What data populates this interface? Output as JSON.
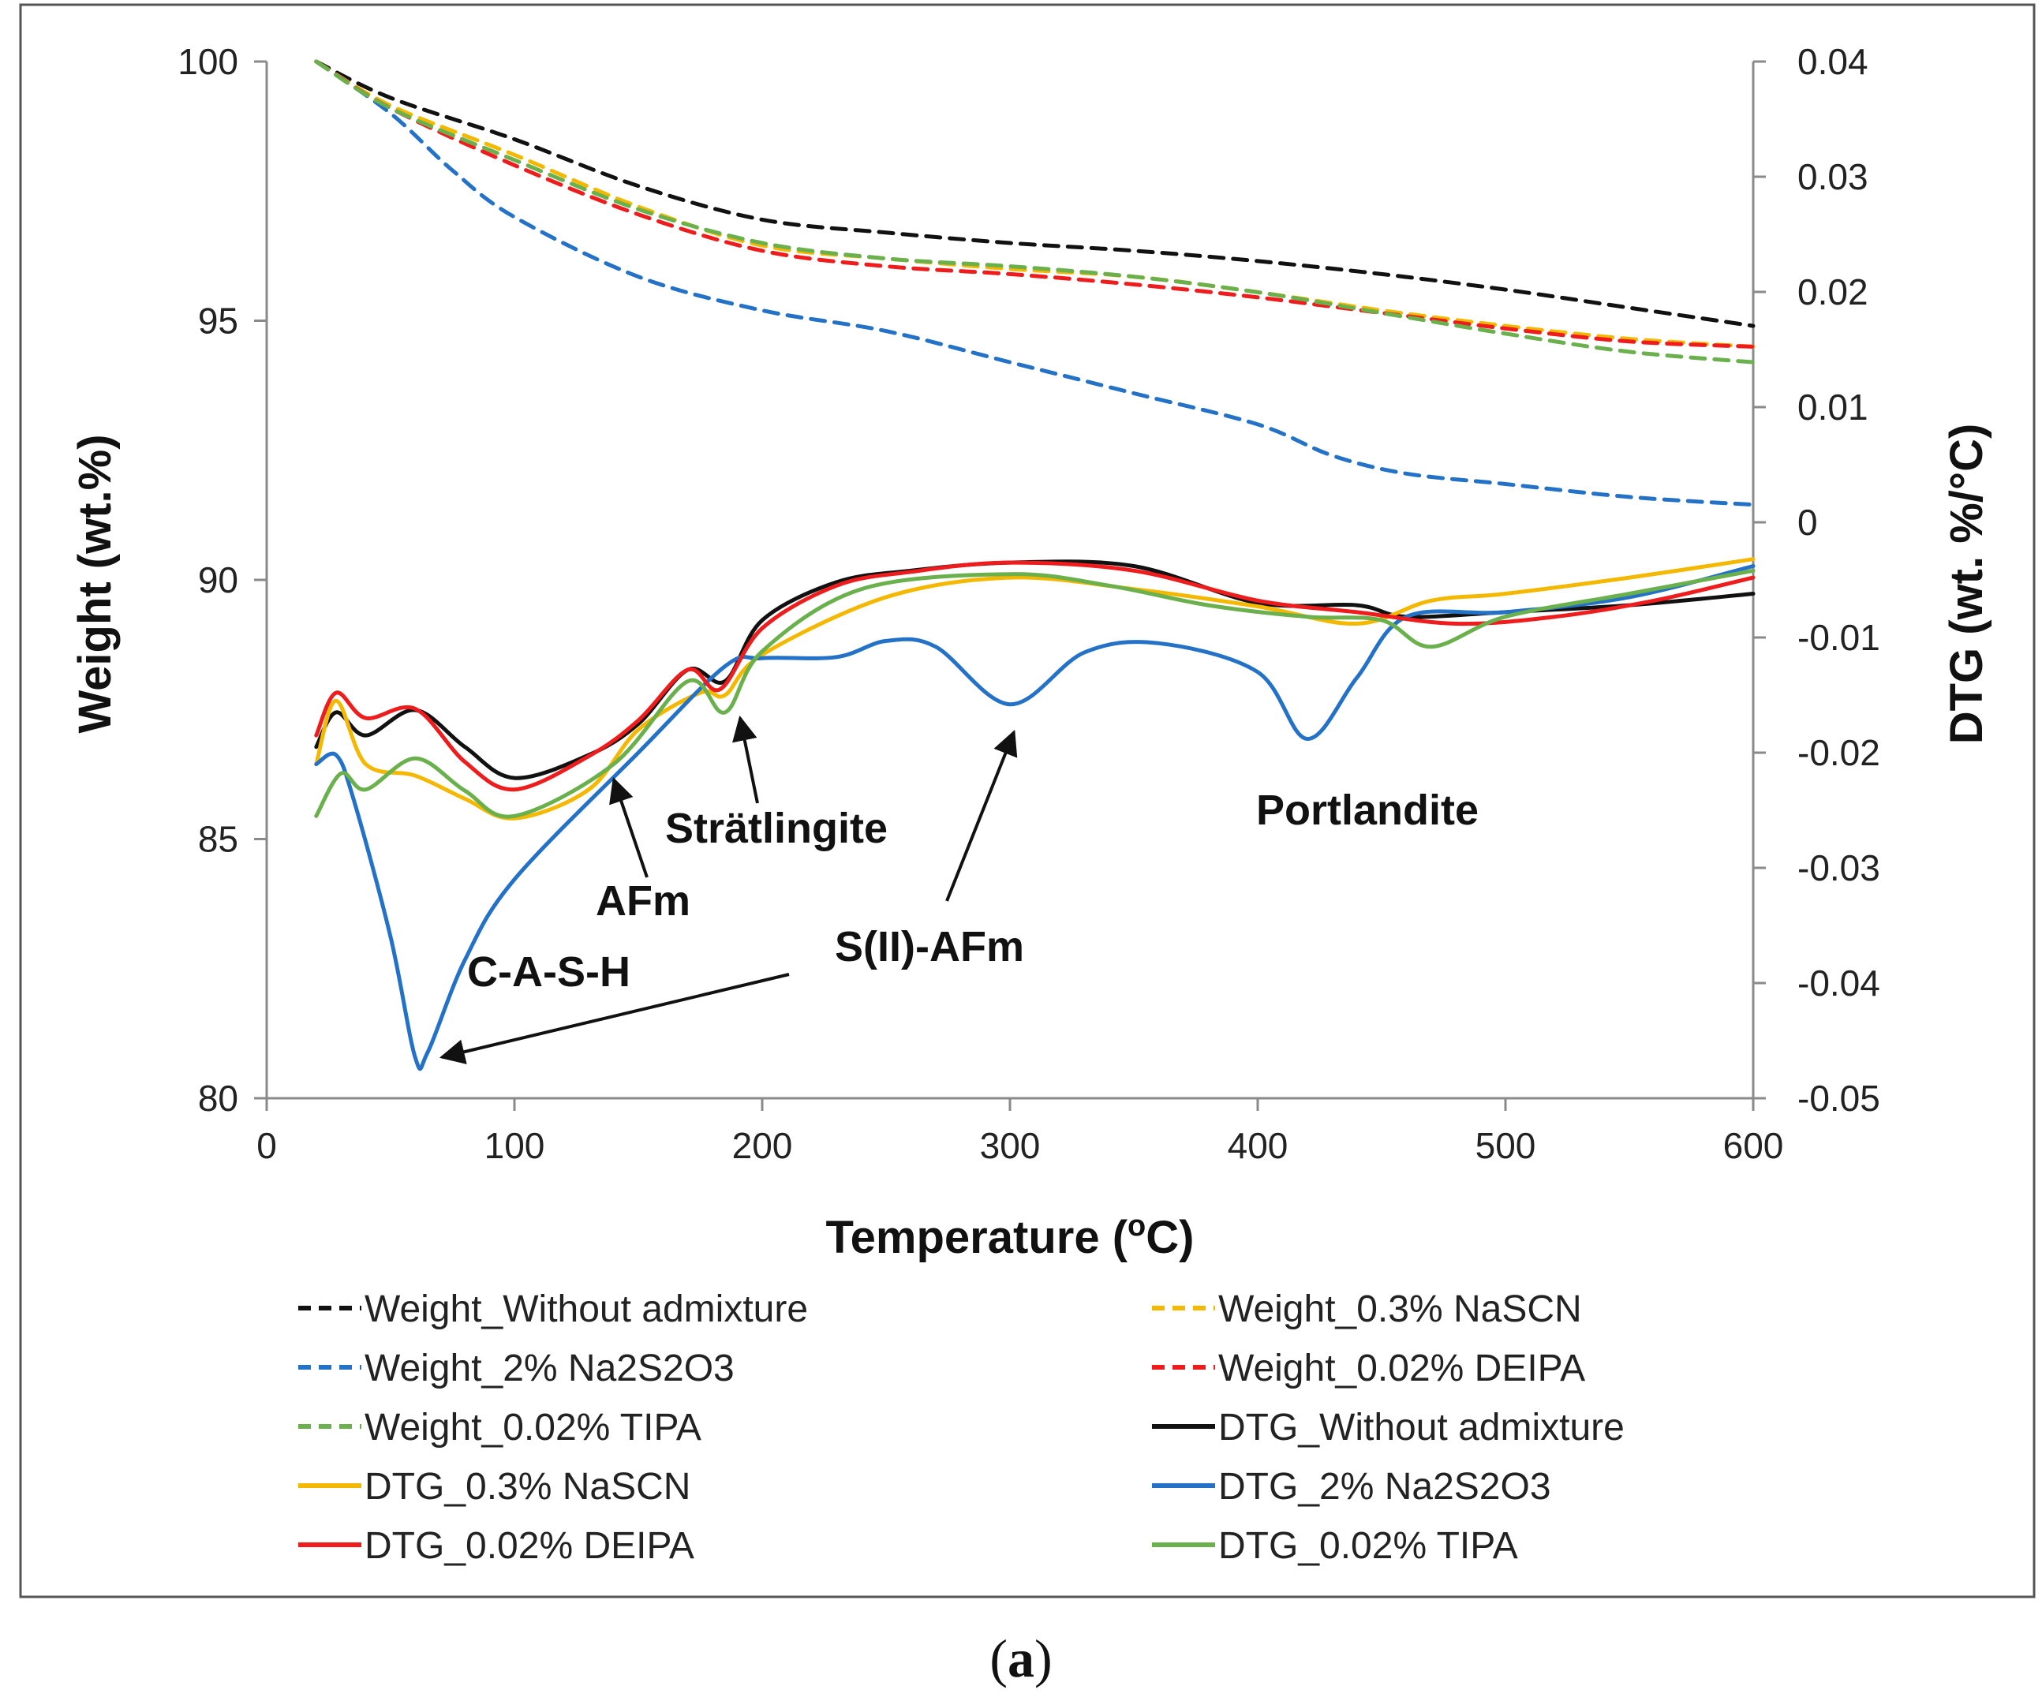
{
  "chart_data": {
    "type": "line",
    "caption": {
      "open": "(",
      "letter": "a",
      "close": ")"
    },
    "xlabel": {
      "main": "Temperature (",
      "sup": "o",
      "end": "C)"
    },
    "ylabel_left": "Weight (wt.%)",
    "ylabel_right": "DTG (wt. %/°C)",
    "xlim": [
      0,
      600
    ],
    "ylim_left": [
      80,
      100
    ],
    "ylim_right": [
      -0.05,
      0.04
    ],
    "x_ticks": [
      0,
      100,
      200,
      300,
      400,
      500,
      600
    ],
    "y_left_ticks": [
      80,
      85,
      90,
      95,
      100
    ],
    "y_right_ticks": [
      "0.04",
      "0.03",
      "0.02",
      "0.01",
      "0",
      "-0.01",
      "-0.02",
      "-0.03",
      "-0.04",
      "-0.05"
    ],
    "annotations": [
      "C-A-S-H",
      "AFm",
      "Strätlingite",
      "S(II)-AFm",
      "Portlandite"
    ],
    "series": [
      {
        "name": "Weight_Without admixture",
        "axis": "left",
        "dash": true,
        "color": "#111111",
        "points": [
          [
            20,
            100
          ],
          [
            50,
            99.3
          ],
          [
            100,
            98.5
          ],
          [
            150,
            97.6
          ],
          [
            200,
            96.95
          ],
          [
            250,
            96.7
          ],
          [
            300,
            96.5
          ],
          [
            350,
            96.35
          ],
          [
            400,
            96.15
          ],
          [
            450,
            95.9
          ],
          [
            500,
            95.6
          ],
          [
            550,
            95.25
          ],
          [
            600,
            94.9
          ]
        ]
      },
      {
        "name": "Weight_0.3% NaSCN",
        "axis": "left",
        "dash": true,
        "color": "#f5b800",
        "points": [
          [
            20,
            100
          ],
          [
            50,
            99.15
          ],
          [
            100,
            98.2
          ],
          [
            150,
            97.2
          ],
          [
            200,
            96.45
          ],
          [
            250,
            96.2
          ],
          [
            300,
            96.0
          ],
          [
            350,
            95.85
          ],
          [
            400,
            95.55
          ],
          [
            450,
            95.2
          ],
          [
            500,
            94.9
          ],
          [
            550,
            94.65
          ],
          [
            600,
            94.5
          ]
        ]
      },
      {
        "name": "Weight_2% Na2S2O3",
        "axis": "left",
        "dash": true,
        "color": "#2471c8",
        "points": [
          [
            20,
            100
          ],
          [
            50,
            99.0
          ],
          [
            75,
            97.9
          ],
          [
            100,
            97.0
          ],
          [
            150,
            95.85
          ],
          [
            200,
            95.2
          ],
          [
            250,
            94.8
          ],
          [
            300,
            94.2
          ],
          [
            350,
            93.6
          ],
          [
            400,
            93.0
          ],
          [
            430,
            92.4
          ],
          [
            460,
            92.05
          ],
          [
            500,
            91.85
          ],
          [
            550,
            91.6
          ],
          [
            600,
            91.45
          ]
        ]
      },
      {
        "name": "Weight_0.02% DEIPA",
        "axis": "left",
        "dash": true,
        "color": "#ee1c1c",
        "points": [
          [
            20,
            100
          ],
          [
            50,
            99.1
          ],
          [
            100,
            98.0
          ],
          [
            150,
            97.05
          ],
          [
            200,
            96.35
          ],
          [
            250,
            96.05
          ],
          [
            300,
            95.9
          ],
          [
            350,
            95.7
          ],
          [
            400,
            95.45
          ],
          [
            450,
            95.15
          ],
          [
            500,
            94.85
          ],
          [
            550,
            94.6
          ],
          [
            600,
            94.5
          ]
        ]
      },
      {
        "name": "Weight_0.02% TIPA",
        "axis": "left",
        "dash": true,
        "color": "#6ab04c",
        "points": [
          [
            20,
            100
          ],
          [
            50,
            99.1
          ],
          [
            100,
            98.1
          ],
          [
            150,
            97.15
          ],
          [
            200,
            96.5
          ],
          [
            250,
            96.2
          ],
          [
            300,
            96.05
          ],
          [
            350,
            95.85
          ],
          [
            400,
            95.55
          ],
          [
            450,
            95.15
          ],
          [
            500,
            94.75
          ],
          [
            550,
            94.4
          ],
          [
            600,
            94.2
          ]
        ]
      },
      {
        "name": "DTG_Without admixture",
        "axis": "right",
        "dash": false,
        "color": "#111111",
        "points": [
          [
            20,
            -0.0195
          ],
          [
            28,
            -0.0165
          ],
          [
            40,
            -0.0185
          ],
          [
            60,
            -0.0163
          ],
          [
            80,
            -0.0195
          ],
          [
            100,
            -0.0222
          ],
          [
            130,
            -0.0202
          ],
          [
            150,
            -0.0175
          ],
          [
            170,
            -0.0128
          ],
          [
            185,
            -0.0138
          ],
          [
            200,
            -0.0085
          ],
          [
            230,
            -0.0052
          ],
          [
            260,
            -0.0042
          ],
          [
            300,
            -0.0035
          ],
          [
            350,
            -0.0038
          ],
          [
            400,
            -0.007
          ],
          [
            440,
            -0.0072
          ],
          [
            460,
            -0.0082
          ],
          [
            500,
            -0.0078
          ],
          [
            550,
            -0.0072
          ],
          [
            600,
            -0.0062
          ]
        ]
      },
      {
        "name": "DTG_0.3% NaSCN",
        "axis": "right",
        "dash": false,
        "color": "#f5b800",
        "points": [
          [
            20,
            -0.021
          ],
          [
            28,
            -0.0155
          ],
          [
            40,
            -0.021
          ],
          [
            60,
            -0.022
          ],
          [
            80,
            -0.024
          ],
          [
            100,
            -0.0257
          ],
          [
            130,
            -0.0232
          ],
          [
            150,
            -0.018
          ],
          [
            175,
            -0.0148
          ],
          [
            185,
            -0.015
          ],
          [
            200,
            -0.0115
          ],
          [
            250,
            -0.0065
          ],
          [
            300,
            -0.0048
          ],
          [
            350,
            -0.0058
          ],
          [
            400,
            -0.0073
          ],
          [
            440,
            -0.0088
          ],
          [
            470,
            -0.0068
          ],
          [
            500,
            -0.0062
          ],
          [
            550,
            -0.0048
          ],
          [
            600,
            -0.0032
          ]
        ]
      },
      {
        "name": "DTG_2% Na2S2O3",
        "axis": "right",
        "dash": false,
        "color": "#2471c8",
        "points": [
          [
            20,
            -0.021
          ],
          [
            28,
            -0.0202
          ],
          [
            35,
            -0.024
          ],
          [
            50,
            -0.036
          ],
          [
            60,
            -0.0465
          ],
          [
            65,
            -0.046
          ],
          [
            80,
            -0.038
          ],
          [
            100,
            -0.031
          ],
          [
            150,
            -0.02
          ],
          [
            185,
            -0.0125
          ],
          [
            200,
            -0.0118
          ],
          [
            230,
            -0.0117
          ],
          [
            250,
            -0.0103
          ],
          [
            270,
            -0.0108
          ],
          [
            300,
            -0.0158
          ],
          [
            330,
            -0.0113
          ],
          [
            360,
            -0.0105
          ],
          [
            400,
            -0.013
          ],
          [
            420,
            -0.0188
          ],
          [
            440,
            -0.0135
          ],
          [
            460,
            -0.0082
          ],
          [
            500,
            -0.0078
          ],
          [
            550,
            -0.0065
          ],
          [
            600,
            -0.0038
          ]
        ]
      },
      {
        "name": "DTG_0.02% DEIPA",
        "axis": "right",
        "dash": false,
        "color": "#ee1c1c",
        "points": [
          [
            20,
            -0.0185
          ],
          [
            28,
            -0.0148
          ],
          [
            40,
            -0.017
          ],
          [
            60,
            -0.0162
          ],
          [
            80,
            -0.0208
          ],
          [
            100,
            -0.0232
          ],
          [
            130,
            -0.0203
          ],
          [
            150,
            -0.0172
          ],
          [
            170,
            -0.0128
          ],
          [
            183,
            -0.0145
          ],
          [
            200,
            -0.0092
          ],
          [
            230,
            -0.0055
          ],
          [
            260,
            -0.0043
          ],
          [
            300,
            -0.0035
          ],
          [
            350,
            -0.0042
          ],
          [
            400,
            -0.0068
          ],
          [
            440,
            -0.0078
          ],
          [
            480,
            -0.0088
          ],
          [
            520,
            -0.0082
          ],
          [
            560,
            -0.0068
          ],
          [
            600,
            -0.0048
          ]
        ]
      },
      {
        "name": "DTG_0.02% TIPA",
        "axis": "right",
        "dash": false,
        "color": "#6ab04c",
        "points": [
          [
            20,
            -0.0255
          ],
          [
            30,
            -0.0218
          ],
          [
            40,
            -0.0232
          ],
          [
            60,
            -0.0205
          ],
          [
            80,
            -0.0233
          ],
          [
            100,
            -0.0255
          ],
          [
            140,
            -0.021
          ],
          [
            170,
            -0.0138
          ],
          [
            185,
            -0.0165
          ],
          [
            200,
            -0.0112
          ],
          [
            240,
            -0.0058
          ],
          [
            300,
            -0.0045
          ],
          [
            340,
            -0.0055
          ],
          [
            380,
            -0.0072
          ],
          [
            420,
            -0.0082
          ],
          [
            450,
            -0.0085
          ],
          [
            470,
            -0.0108
          ],
          [
            500,
            -0.0082
          ],
          [
            550,
            -0.0062
          ],
          [
            600,
            -0.0042
          ]
        ]
      }
    ]
  }
}
